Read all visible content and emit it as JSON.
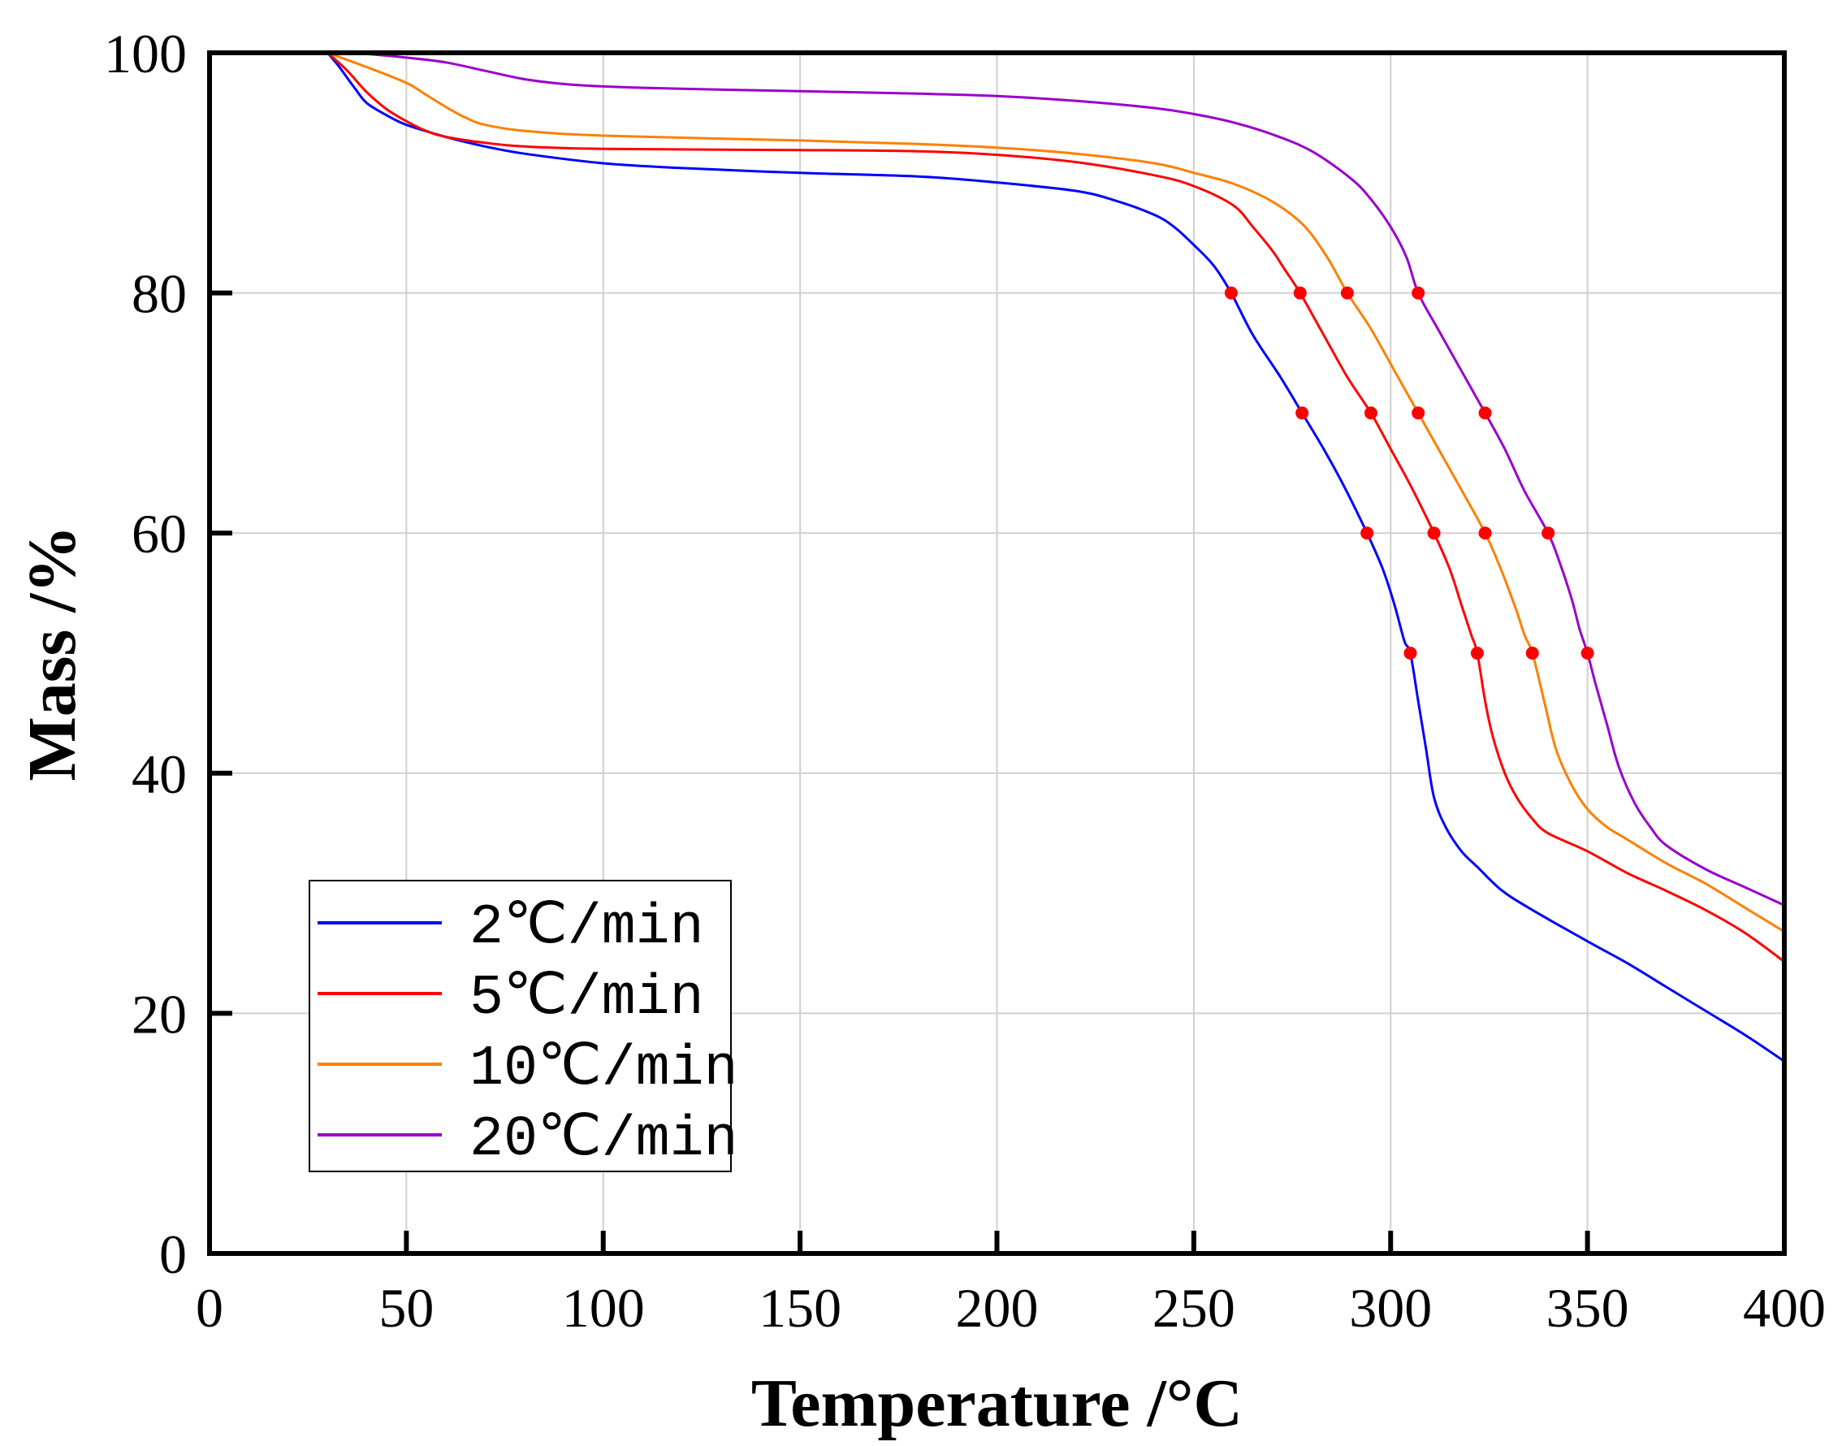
{
  "chart_data": {
    "type": "line",
    "title": "",
    "xlabel": "Temperature /°C",
    "ylabel": "Mass /%",
    "xlim": [
      0,
      400
    ],
    "ylim": [
      0,
      100
    ],
    "xticks": [
      0,
      50,
      100,
      150,
      200,
      250,
      300,
      350,
      400
    ],
    "yticks": [
      0,
      20,
      40,
      60,
      80,
      100
    ],
    "grid": true,
    "legend_position": "bottom-left",
    "series": [
      {
        "name": "2℃/min",
        "color": "#0000ff",
        "points": [
          [
            30,
            100
          ],
          [
            33,
            98.8
          ],
          [
            37,
            97
          ],
          [
            40,
            95.8
          ],
          [
            45,
            94.8
          ],
          [
            50,
            94
          ],
          [
            60,
            93
          ],
          [
            70,
            92.2
          ],
          [
            80,
            91.6
          ],
          [
            100,
            90.8
          ],
          [
            120,
            90.4
          ],
          [
            150,
            90
          ],
          [
            180,
            89.7
          ],
          [
            200,
            89.2
          ],
          [
            220,
            88.5
          ],
          [
            230,
            87.7
          ],
          [
            240,
            86.5
          ],
          [
            245,
            85.5
          ],
          [
            250,
            84
          ],
          [
            255,
            82.3
          ],
          [
            259.5,
            80
          ],
          [
            265,
            76.5
          ],
          [
            272,
            73
          ],
          [
            277.5,
            70
          ],
          [
            283,
            67
          ],
          [
            288,
            64
          ],
          [
            294,
            60
          ],
          [
            298,
            57
          ],
          [
            301,
            54
          ],
          [
            303.5,
            51
          ],
          [
            305,
            50
          ],
          [
            307,
            46
          ],
          [
            309,
            42
          ],
          [
            311,
            38
          ],
          [
            314,
            35.5
          ],
          [
            318,
            33.5
          ],
          [
            322,
            32.2
          ],
          [
            328,
            30.3
          ],
          [
            335,
            28.8
          ],
          [
            350,
            26
          ],
          [
            360,
            24.2
          ],
          [
            370,
            22.2
          ],
          [
            380,
            20.2
          ],
          [
            390,
            18.2
          ],
          [
            400,
            16
          ]
        ]
      },
      {
        "name": "5℃/min",
        "color": "#ff0000",
        "points": [
          [
            30,
            100
          ],
          [
            35,
            98.5
          ],
          [
            40,
            96.7
          ],
          [
            45,
            95.3
          ],
          [
            50,
            94.3
          ],
          [
            55,
            93.5
          ],
          [
            60,
            93
          ],
          [
            70,
            92.5
          ],
          [
            80,
            92.2
          ],
          [
            100,
            92
          ],
          [
            150,
            91.9
          ],
          [
            180,
            91.8
          ],
          [
            200,
            91.5
          ],
          [
            220,
            90.9
          ],
          [
            240,
            89.8
          ],
          [
            250,
            88.9
          ],
          [
            260,
            87.3
          ],
          [
            265,
            85.5
          ],
          [
            270,
            83.5
          ],
          [
            273,
            82
          ],
          [
            277,
            80
          ],
          [
            283,
            76.5
          ],
          [
            289,
            73
          ],
          [
            295,
            70
          ],
          [
            300,
            67
          ],
          [
            305,
            64
          ],
          [
            311,
            60
          ],
          [
            315,
            57
          ],
          [
            318,
            54
          ],
          [
            320.5,
            51.5
          ],
          [
            322,
            50
          ],
          [
            324,
            46
          ],
          [
            326,
            43
          ],
          [
            329,
            40
          ],
          [
            332,
            38
          ],
          [
            336,
            36.2
          ],
          [
            340,
            35
          ],
          [
            350,
            33.5
          ],
          [
            360,
            31.7
          ],
          [
            370,
            30.2
          ],
          [
            380,
            28.6
          ],
          [
            390,
            26.7
          ],
          [
            400,
            24.3
          ]
        ]
      },
      {
        "name": "10℃/min",
        "color": "#ff8000",
        "points": [
          [
            30,
            100
          ],
          [
            40,
            98.8
          ],
          [
            50,
            97.5
          ],
          [
            55,
            96.5
          ],
          [
            60,
            95.5
          ],
          [
            65,
            94.6
          ],
          [
            70,
            94
          ],
          [
            80,
            93.5
          ],
          [
            100,
            93.1
          ],
          [
            150,
            92.7
          ],
          [
            180,
            92.4
          ],
          [
            200,
            92.1
          ],
          [
            220,
            91.6
          ],
          [
            240,
            90.8
          ],
          [
            250,
            90
          ],
          [
            260,
            89.1
          ],
          [
            270,
            87.6
          ],
          [
            278,
            85.6
          ],
          [
            284,
            82.9
          ],
          [
            289,
            80
          ],
          [
            295,
            77
          ],
          [
            301,
            73.5
          ],
          [
            307,
            70
          ],
          [
            313,
            66.5
          ],
          [
            319,
            63
          ],
          [
            324,
            60
          ],
          [
            328,
            57
          ],
          [
            332,
            53.5
          ],
          [
            334,
            51.5
          ],
          [
            336,
            50
          ],
          [
            339,
            46
          ],
          [
            342,
            42
          ],
          [
            346,
            39
          ],
          [
            350,
            37
          ],
          [
            355,
            35.5
          ],
          [
            360,
            34.5
          ],
          [
            370,
            32.5
          ],
          [
            380,
            30.8
          ],
          [
            390,
            28.8
          ],
          [
            400,
            26.8
          ]
        ]
      },
      {
        "name": "20℃/min",
        "color": "#9900cc",
        "points": [
          [
            30,
            100
          ],
          [
            40,
            99.9
          ],
          [
            50,
            99.6
          ],
          [
            60,
            99.2
          ],
          [
            70,
            98.5
          ],
          [
            80,
            97.8
          ],
          [
            90,
            97.4
          ],
          [
            100,
            97.2
          ],
          [
            120,
            97
          ],
          [
            150,
            96.8
          ],
          [
            180,
            96.6
          ],
          [
            200,
            96.4
          ],
          [
            220,
            96
          ],
          [
            240,
            95.4
          ],
          [
            250,
            94.9
          ],
          [
            260,
            94.2
          ],
          [
            270,
            93.2
          ],
          [
            280,
            91.8
          ],
          [
            290,
            89.5
          ],
          [
            295,
            87.8
          ],
          [
            300,
            85.5
          ],
          [
            304,
            83
          ],
          [
            307,
            80
          ],
          [
            312,
            77
          ],
          [
            318,
            73.5
          ],
          [
            324,
            70
          ],
          [
            329,
            67
          ],
          [
            334,
            63.5
          ],
          [
            340,
            60
          ],
          [
            343,
            57.5
          ],
          [
            346,
            54.5
          ],
          [
            348,
            52
          ],
          [
            350,
            50
          ],
          [
            352,
            47.5
          ],
          [
            355,
            44
          ],
          [
            358,
            40.5
          ],
          [
            362,
            37.5
          ],
          [
            366,
            35.5
          ],
          [
            370,
            34
          ],
          [
            380,
            32
          ],
          [
            390,
            30.5
          ],
          [
            400,
            29
          ]
        ]
      }
    ],
    "markers": {
      "color": "#ff0000",
      "points": [
        [
          259.5,
          80
        ],
        [
          277,
          80
        ],
        [
          289,
          80
        ],
        [
          307,
          80
        ],
        [
          277.5,
          70
        ],
        [
          295,
          70
        ],
        [
          307,
          70
        ],
        [
          324,
          70
        ],
        [
          294,
          60
        ],
        [
          311,
          60
        ],
        [
          324,
          60
        ],
        [
          340,
          60
        ],
        [
          305,
          50
        ],
        [
          322,
          50
        ],
        [
          336,
          50
        ],
        [
          350,
          50
        ]
      ]
    }
  }
}
